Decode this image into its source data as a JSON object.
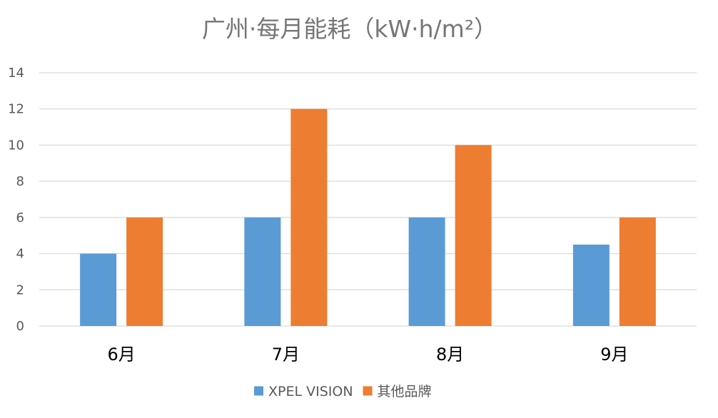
{
  "chart_data": {
    "type": "bar",
    "title": "广州·每月能耗（kW·h/m²）",
    "xlabel": "",
    "ylabel": "",
    "categories": [
      "6月",
      "7月",
      "8月",
      "9月"
    ],
    "series": [
      {
        "name": "XPEL VISION",
        "values": [
          4,
          6,
          6,
          4.5
        ],
        "color": "#5B9BD5"
      },
      {
        "name": "其他品牌",
        "values": [
          6,
          12,
          10,
          6
        ],
        "color": "#ED7D31"
      }
    ],
    "ylim": [
      0,
      14
    ],
    "yticks": [
      0,
      2,
      4,
      6,
      8,
      10,
      12,
      14
    ],
    "grid": true,
    "gridColor": "#D9D9D9",
    "legend_position": "bottom"
  }
}
